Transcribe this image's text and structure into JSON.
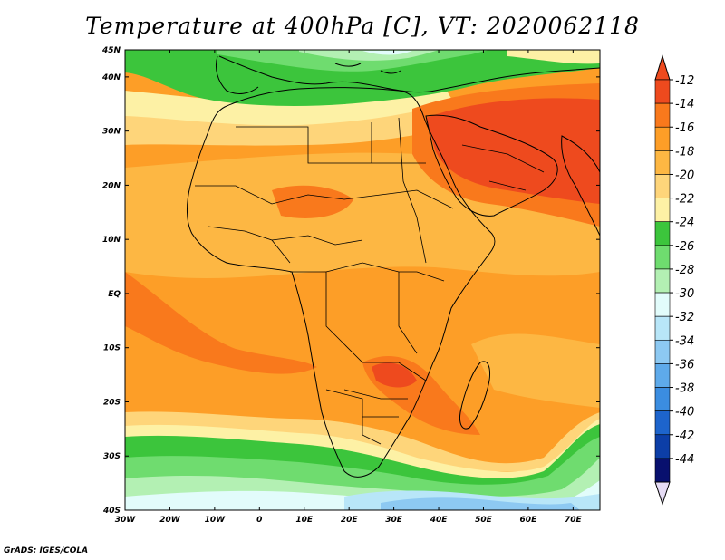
{
  "title": "Temperature at 400hPa [C], VT: 2020062118",
  "credit": "GrADS: IGES/COLA",
  "map": {
    "lon_range": [
      -30,
      76
    ],
    "lat_range": [
      -40,
      45
    ],
    "lon_ticks": [
      "30W",
      "20W",
      "10W",
      "0",
      "10E",
      "20E",
      "30E",
      "40E",
      "50E",
      "60E",
      "70E"
    ],
    "lat_ticks": [
      "45N",
      "40N",
      "30N",
      "20N",
      "10N",
      "EQ",
      "10S",
      "20S",
      "30S",
      "40S"
    ],
    "lat_tick_values": [
      45,
      40,
      30,
      20,
      10,
      0,
      -10,
      -20,
      -30,
      -40
    ]
  },
  "colorbar": {
    "labels": [
      "-12",
      "-14",
      "-16",
      "-18",
      "-20",
      "-22",
      "-24",
      "-26",
      "-28",
      "-30",
      "-32",
      "-34",
      "-36",
      "-38",
      "-40",
      "-42",
      "-44"
    ],
    "colors": [
      "#ee4a1e",
      "#f9791c",
      "#fd9e27",
      "#fdb743",
      "#fed57a",
      "#fdf1a5",
      "#3cc53c",
      "#6fdc6f",
      "#b3f0b3",
      "#e2fcfb",
      "#b8e6f8",
      "#8dc9f2",
      "#5eaaea",
      "#3b8de0",
      "#1d64cc",
      "#0c3ea7",
      "#08106e"
    ],
    "top_arrow_color": "#ee4a1e",
    "bottom_arrow_color": "#e6dcf5"
  },
  "field_colors": {
    "deep_red": "#ee4a1e",
    "orange_dark": "#f9791c",
    "orange": "#fd9e27",
    "orange_light": "#fdb743",
    "yellow": "#fed57a",
    "pale_yellow": "#fdf1a5",
    "green_dark": "#3cc53c",
    "green": "#6fdc6f",
    "green_light": "#b3f0b3",
    "cyan_pale": "#e2fcfb",
    "blue_light": "#b8e6f8",
    "blue": "#8dc9f2"
  }
}
